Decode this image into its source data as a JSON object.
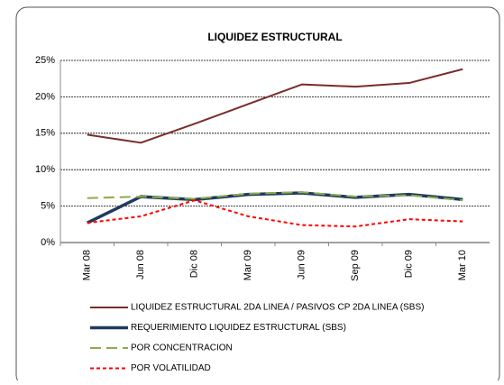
{
  "chart_data": {
    "type": "line",
    "title": "LIQUIDEZ ESTRUCTURAL",
    "categories": [
      "Mar 08",
      "Jun 08",
      "Dic 08",
      "Mar 09",
      "Jun 09",
      "Sep 09",
      "Dic 09",
      "Mar 10"
    ],
    "series": [
      {
        "name": "LIQUIDEZ ESTRUCTURAL 2DA LINEA / PASIVOS CP 2DA LINEA (SBS)",
        "color": "#7b2c2c",
        "line_style": "solid",
        "values": [
          14.8,
          13.7,
          16.3,
          19.0,
          21.7,
          21.4,
          21.9,
          23.8
        ]
      },
      {
        "name": "REQUERIMIENTO LIQUIDEZ ESTRUCTURAL (SBS)",
        "color": "#1f3a5f",
        "line_style": "thick",
        "values": [
          2.7,
          6.3,
          5.9,
          6.6,
          6.8,
          6.2,
          6.6,
          5.9
        ]
      },
      {
        "name": "POR CONCENTRACION",
        "color": "#8faa4a",
        "line_style": "dashed",
        "values": [
          6.1,
          6.3,
          6.0,
          6.7,
          6.9,
          6.3,
          6.5,
          5.8
        ]
      },
      {
        "name": "POR VOLATILIDAD",
        "color": "#ff0000",
        "line_style": "dotted",
        "values": [
          2.7,
          3.6,
          5.8,
          3.6,
          2.4,
          2.2,
          3.2,
          2.9
        ]
      }
    ],
    "ylim": [
      0,
      25
    ],
    "yticks": [
      {
        "value": 0,
        "label": "0%"
      },
      {
        "value": 5,
        "label": "5%"
      },
      {
        "value": 10,
        "label": "10%"
      },
      {
        "value": 15,
        "label": "15%"
      },
      {
        "value": 20,
        "label": "20%"
      },
      {
        "value": 25,
        "label": "25%"
      }
    ],
    "grid": true
  }
}
